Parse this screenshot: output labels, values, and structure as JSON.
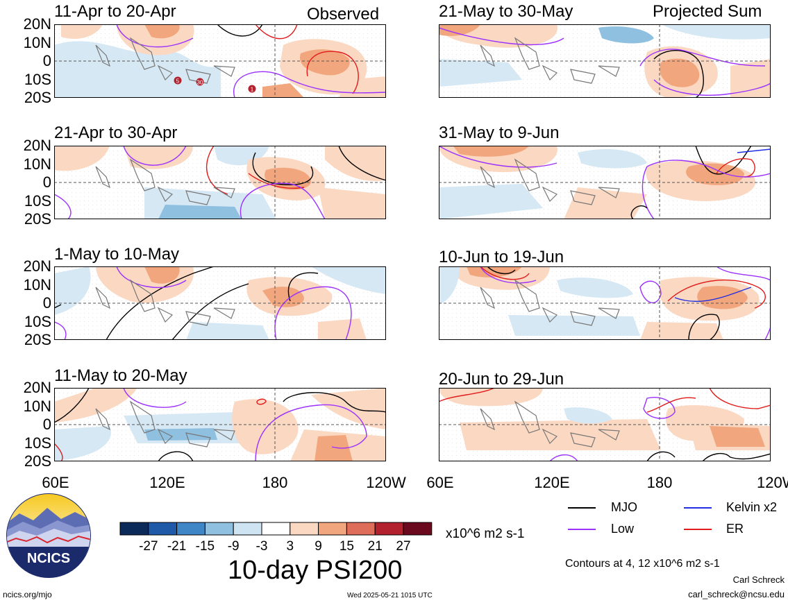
{
  "panels": [
    {
      "title": "11-Apr to 20-Apr",
      "tag": "Observed"
    },
    {
      "title": "21-Apr to 30-Apr",
      "tag": ""
    },
    {
      "title": "1-May to 10-May",
      "tag": ""
    },
    {
      "title": "11-May to 20-May",
      "tag": ""
    },
    {
      "title": "21-May to 30-May",
      "tag": "Projected Sum"
    },
    {
      "title": "31-May to 9-Jun",
      "tag": ""
    },
    {
      "title": "10-Jun to 19-Jun",
      "tag": ""
    },
    {
      "title": "20-Jun to 29-Jun",
      "tag": ""
    }
  ],
  "lat_labels": [
    "20N",
    "10N",
    "0",
    "10S",
    "20S"
  ],
  "lon_labels": [
    "60E",
    "120E",
    "180",
    "120W"
  ],
  "colorbar": {
    "colors": [
      "#0b2a5a",
      "#1f5aa8",
      "#3f86c6",
      "#8fc0e0",
      "#cfe4f2",
      "#ffffff",
      "#fbd8c2",
      "#f2a67d",
      "#de6d5a",
      "#b4212e",
      "#6b0a1f"
    ],
    "tick_labels": [
      "-27",
      "-21",
      "-15",
      "-9",
      "-3",
      "3",
      "9",
      "15",
      "21",
      "27"
    ],
    "units": "x10^6 m2 s-1"
  },
  "chart_title": "10-day PSI200",
  "legend": [
    {
      "label": "MJO",
      "color": "#000000"
    },
    {
      "label": "Kelvin x2",
      "color": "#1e2ee0"
    },
    {
      "label": "Low",
      "color": "#9b30ff"
    },
    {
      "label": "ER",
      "color": "#e11a1a"
    }
  ],
  "contour_note": "Contours at 4, 12 x10^6 m2 s-1",
  "author": "Carl Schreck",
  "email": "carl_schreck@ncsu.edu",
  "site": "ncics.org/mjo",
  "timestamp": "Wed 2025-05-21 1015 UTC",
  "logo_text": "NCICS",
  "storm_markers": [
    "5",
    "30",
    "1"
  ]
}
